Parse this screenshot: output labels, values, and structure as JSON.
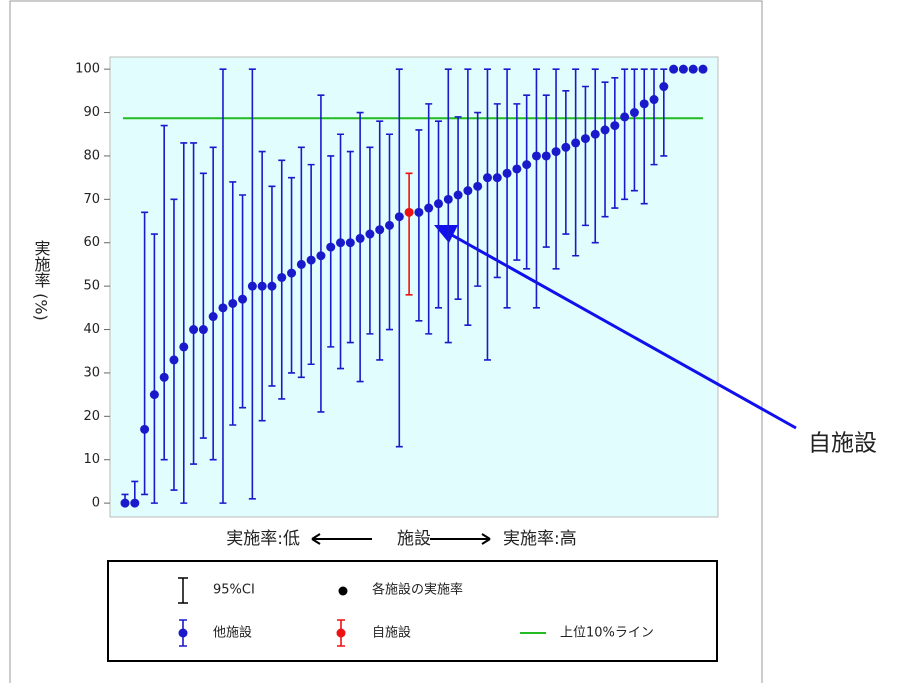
{
  "chart_data": {
    "type": "errorbar",
    "y_label": "実施率 (%)",
    "x_label_low": "実施率:低",
    "x_label_mid": "施設",
    "x_label_high": "実施率:高",
    "ylim": [
      -3.2,
      102.8
    ],
    "yticks": [
      0,
      10,
      20,
      30,
      40,
      50,
      60,
      70,
      80,
      90,
      100
    ],
    "legend_ci": "95%CI",
    "legend_point": "各施設の実施率",
    "reference_line": {
      "name": "上位10%ライン",
      "value": 88.7,
      "color": "#22bb22"
    },
    "annotation": "自施設",
    "series": [
      {
        "name": "他施設",
        "color": "#1a1acc",
        "values": [
          0,
          0,
          17,
          25,
          29,
          33,
          36,
          40,
          40,
          43,
          45,
          46,
          47,
          50,
          50,
          50,
          52,
          53,
          55,
          56,
          57,
          59,
          60,
          60,
          61,
          62,
          63,
          64,
          66,
          null,
          67,
          68,
          69,
          70,
          71,
          72,
          73,
          75,
          75,
          76,
          77,
          78,
          80,
          80,
          81,
          82,
          83,
          84,
          85,
          86,
          87,
          89,
          90,
          92,
          93,
          96,
          100,
          100,
          100,
          100
        ],
        "lower": [
          0,
          0,
          2,
          0,
          10,
          3,
          0,
          9,
          15,
          10,
          0,
          18,
          22,
          1,
          19,
          27,
          24,
          30,
          29,
          32,
          21,
          36,
          31,
          37,
          28,
          39,
          33,
          40,
          13,
          null,
          42,
          39,
          45,
          37,
          47,
          41,
          50,
          33,
          52,
          45,
          56,
          54,
          45,
          59,
          54,
          62,
          57,
          64,
          60,
          66,
          68,
          70,
          72,
          69,
          78,
          80,
          100,
          100,
          100,
          100
        ],
        "upper": [
          2,
          5,
          67,
          62,
          87,
          70,
          83,
          83,
          76,
          82,
          100,
          74,
          71,
          100,
          81,
          73,
          79,
          75,
          82,
          78,
          94,
          80,
          85,
          81,
          90,
          82,
          88,
          85,
          100,
          null,
          86,
          92,
          88,
          100,
          89,
          100,
          90,
          100,
          92,
          100,
          92,
          94,
          100,
          94,
          100,
          95,
          100,
          96,
          100,
          97,
          98,
          100,
          100,
          100,
          100,
          100,
          100,
          100,
          100,
          100
        ]
      },
      {
        "name": "自施設",
        "color": "#ee1111",
        "values": [
          null,
          null,
          null,
          null,
          null,
          null,
          null,
          null,
          null,
          null,
          null,
          null,
          null,
          null,
          null,
          null,
          null,
          null,
          null,
          null,
          null,
          null,
          null,
          null,
          null,
          null,
          null,
          null,
          null,
          67,
          null,
          null,
          null,
          null,
          null,
          null,
          null,
          null,
          null,
          null,
          null,
          null,
          null,
          null,
          null,
          null,
          null,
          null,
          null,
          null,
          null,
          null,
          null,
          null,
          null,
          null,
          null,
          null,
          null,
          null
        ],
        "lower": [
          null,
          null,
          null,
          null,
          null,
          null,
          null,
          null,
          null,
          null,
          null,
          null,
          null,
          null,
          null,
          null,
          null,
          null,
          null,
          null,
          null,
          null,
          null,
          null,
          null,
          null,
          null,
          null,
          null,
          48,
          null,
          null,
          null,
          null,
          null,
          null,
          null,
          null,
          null,
          null,
          null,
          null,
          null,
          null,
          null,
          null,
          null,
          null,
          null,
          null,
          null,
          null,
          null,
          null,
          null,
          null,
          null,
          null,
          null,
          null
        ],
        "upper": [
          null,
          null,
          null,
          null,
          null,
          null,
          null,
          null,
          null,
          null,
          null,
          null,
          null,
          null,
          null,
          null,
          null,
          null,
          null,
          null,
          null,
          null,
          null,
          null,
          null,
          null,
          null,
          null,
          null,
          76,
          null,
          null,
          null,
          null,
          null,
          null,
          null,
          null,
          null,
          null,
          null,
          null,
          null,
          null,
          null,
          null,
          null,
          null,
          null,
          null,
          null,
          null,
          null,
          null,
          null,
          null,
          null,
          null,
          null,
          null
        ]
      }
    ]
  }
}
